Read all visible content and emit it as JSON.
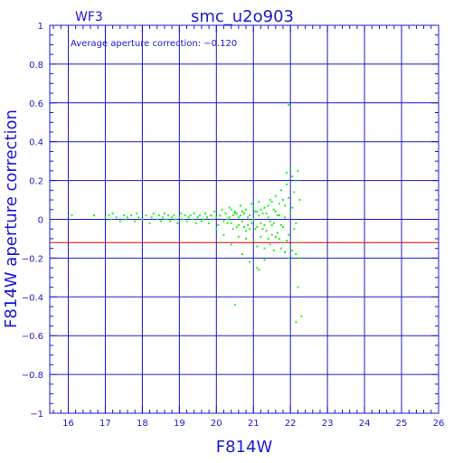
{
  "chart_data": {
    "type": "scatter",
    "title": "smc_u2o903",
    "subtitle": "WF3",
    "xlabel": "F814W",
    "ylabel": "F814W aperture correction",
    "annotation": "Average aperture correction: −0.120",
    "xlim": [
      15.5,
      26
    ],
    "ylim": [
      -1,
      1
    ],
    "grid": true,
    "x_major_ticks": [
      16,
      17,
      18,
      19,
      20,
      21,
      22,
      23,
      24,
      25,
      26
    ],
    "x_tick_labels": [
      "16",
      "17",
      "18",
      "19",
      "20",
      "21",
      "22",
      "23",
      "24",
      "25",
      "26"
    ],
    "y_major_ticks": [
      -1,
      -0.8,
      -0.6,
      -0.4,
      -0.2,
      0,
      0.2,
      0.4,
      0.6,
      0.8,
      1
    ],
    "y_tick_labels": [
      "−1",
      "−0.8",
      "−0.6",
      "−0.4",
      "−0.2",
      "0",
      "0.2",
      "0.4",
      "0.6",
      "0.8",
      "1"
    ],
    "reference_line": {
      "y": -0.12,
      "color": "#e00000"
    },
    "colors": {
      "axis": "#1a1ad0",
      "grid": "#1a1ad0",
      "points": "#22ee22",
      "reference": "#e00000"
    },
    "series": [
      {
        "points": [
          [
            16.1,
            0.02
          ],
          [
            16.7,
            0.02
          ],
          [
            17.0,
            0.01
          ],
          [
            17.1,
            0.02
          ],
          [
            17.15,
            0.0
          ],
          [
            17.2,
            0.03
          ],
          [
            17.3,
            0.01
          ],
          [
            17.4,
            -0.01
          ],
          [
            17.5,
            0.02
          ],
          [
            17.55,
            0.0
          ],
          [
            17.6,
            0.01
          ],
          [
            17.7,
            0.02
          ],
          [
            17.8,
            -0.01
          ],
          [
            17.85,
            0.03
          ],
          [
            17.9,
            0.01
          ],
          [
            18.0,
            0.0
          ],
          [
            18.1,
            0.02
          ],
          [
            18.2,
            -0.02
          ],
          [
            18.25,
            0.01
          ],
          [
            18.3,
            0.03
          ],
          [
            18.4,
            0.0
          ],
          [
            18.45,
            0.02
          ],
          [
            18.5,
            -0.01
          ],
          [
            18.55,
            0.01
          ],
          [
            18.6,
            0.03
          ],
          [
            18.65,
            0.0
          ],
          [
            18.7,
            0.02
          ],
          [
            18.75,
            -0.01
          ],
          [
            18.8,
            0.01
          ],
          [
            18.85,
            0.02
          ],
          [
            18.9,
            0.0
          ],
          [
            18.95,
            -0.02
          ],
          [
            19.0,
            0.01
          ],
          [
            19.05,
            0.03
          ],
          [
            19.1,
            0.0
          ],
          [
            19.15,
            0.02
          ],
          [
            19.2,
            -0.01
          ],
          [
            19.25,
            0.01
          ],
          [
            19.3,
            0.02
          ],
          [
            19.35,
            0.0
          ],
          [
            19.4,
            0.03
          ],
          [
            19.45,
            -0.02
          ],
          [
            19.5,
            0.01
          ],
          [
            19.55,
            0.02
          ],
          [
            19.6,
            -0.01
          ],
          [
            19.65,
            0.0
          ],
          [
            19.7,
            0.03
          ],
          [
            19.75,
            0.01
          ],
          [
            19.8,
            -0.02
          ],
          [
            19.85,
            0.02
          ],
          [
            19.9,
            0.0
          ],
          [
            19.95,
            0.04
          ],
          [
            20.0,
            0.01
          ],
          [
            20.05,
            -0.03
          ],
          [
            20.1,
            0.02
          ],
          [
            20.15,
            0.05
          ],
          [
            20.2,
            -0.01
          ],
          [
            20.25,
            0.03
          ],
          [
            20.3,
            0.0
          ],
          [
            20.35,
            0.06
          ],
          [
            20.4,
            -0.02
          ],
          [
            20.45,
            0.02
          ],
          [
            20.5,
            0.04
          ],
          [
            20.55,
            -0.04
          ],
          [
            20.6,
            0.01
          ],
          [
            20.65,
            0.07
          ],
          [
            20.7,
            -0.01
          ],
          [
            20.75,
            0.03
          ],
          [
            20.8,
            0.05
          ],
          [
            20.85,
            -0.03
          ],
          [
            20.9,
            0.02
          ],
          [
            20.95,
            0.08
          ],
          [
            21.0,
            0.0
          ],
          [
            21.05,
            -0.05
          ],
          [
            21.1,
            0.04
          ],
          [
            21.15,
            0.09
          ],
          [
            21.2,
            -0.02
          ],
          [
            21.25,
            0.03
          ],
          [
            21.3,
            0.06
          ],
          [
            21.35,
            -0.06
          ],
          [
            21.4,
            0.01
          ],
          [
            21.45,
            0.1
          ],
          [
            21.5,
            -0.03
          ],
          [
            21.55,
            0.05
          ],
          [
            21.6,
            0.12
          ],
          [
            21.65,
            -0.07
          ],
          [
            21.7,
            0.02
          ],
          [
            21.75,
            0.15
          ],
          [
            21.8,
            -0.04
          ],
          [
            21.85,
            0.07
          ],
          [
            21.9,
            0.18
          ],
          [
            21.95,
            -0.08
          ],
          [
            22.0,
            0.03
          ],
          [
            22.05,
            0.22
          ],
          [
            22.1,
            -0.05
          ],
          [
            22.15,
            0.2
          ],
          [
            22.2,
            0.25
          ],
          [
            22.25,
            0.1
          ],
          [
            21.9,
            0.24
          ],
          [
            22.0,
            0.26
          ],
          [
            22.1,
            0.14
          ],
          [
            21.95,
            0.11
          ],
          [
            22.05,
            0.06
          ],
          [
            22.15,
            -0.02
          ],
          [
            21.8,
            0.1
          ],
          [
            21.7,
            0.08
          ],
          [
            21.6,
            0.04
          ],
          [
            21.5,
            0.09
          ],
          [
            21.4,
            0.07
          ],
          [
            21.3,
            -0.03
          ],
          [
            21.2,
            0.05
          ],
          [
            21.1,
            -0.04
          ],
          [
            21.0,
            0.06
          ],
          [
            20.9,
            -0.05
          ],
          [
            20.8,
            -0.06
          ],
          [
            20.7,
            0.04
          ],
          [
            20.6,
            -0.03
          ],
          [
            20.5,
            0.03
          ],
          [
            20.4,
            0.05
          ],
          [
            20.3,
            -0.02
          ],
          [
            21.55,
            -0.02
          ],
          [
            21.65,
            0.02
          ],
          [
            21.75,
            -0.03
          ],
          [
            21.85,
            0.01
          ],
          [
            21.45,
            -0.01
          ],
          [
            21.35,
            0.03
          ],
          [
            21.25,
            -0.05
          ],
          [
            21.15,
            0.02
          ],
          [
            21.05,
            0.04
          ],
          [
            20.95,
            -0.02
          ],
          [
            20.85,
            0.01
          ],
          [
            20.75,
            -0.04
          ],
          [
            20.65,
            0.02
          ],
          [
            20.55,
            0.03
          ],
          [
            20.45,
            -0.05
          ],
          [
            20.35,
            0.01
          ],
          [
            21.6,
            -0.09
          ],
          [
            21.7,
            -0.1
          ],
          [
            21.8,
            -0.12
          ],
          [
            21.9,
            -0.11
          ],
          [
            22.0,
            -0.14
          ],
          [
            21.5,
            -0.08
          ],
          [
            21.4,
            -0.1
          ],
          [
            21.2,
            -0.09
          ],
          [
            21.0,
            -0.11
          ],
          [
            20.8,
            -0.1
          ],
          [
            20.6,
            -0.09
          ],
          [
            20.4,
            -0.13
          ],
          [
            20.2,
            -0.08
          ],
          [
            20.0,
            -0.05
          ],
          [
            20.1,
            -0.12
          ],
          [
            21.1,
            -0.14
          ],
          [
            21.3,
            -0.15
          ],
          [
            21.45,
            -0.13
          ],
          [
            21.55,
            -0.16
          ],
          [
            21.75,
            -0.15
          ],
          [
            21.85,
            -0.17
          ],
          [
            22.05,
            -0.16
          ],
          [
            22.15,
            -0.18
          ],
          [
            22.2,
            -0.12
          ],
          [
            20.7,
            -0.18
          ],
          [
            21.1,
            -0.25
          ],
          [
            21.15,
            -0.26
          ],
          [
            21.95,
            -0.2
          ],
          [
            22.25,
            -0.2
          ],
          [
            22.2,
            -0.35
          ],
          [
            22.3,
            -0.5
          ],
          [
            22.15,
            -0.53
          ],
          [
            20.5,
            -0.44
          ],
          [
            21.95,
            0.59
          ],
          [
            21.3,
            -0.21
          ],
          [
            20.9,
            -0.22
          ]
        ]
      }
    ]
  }
}
